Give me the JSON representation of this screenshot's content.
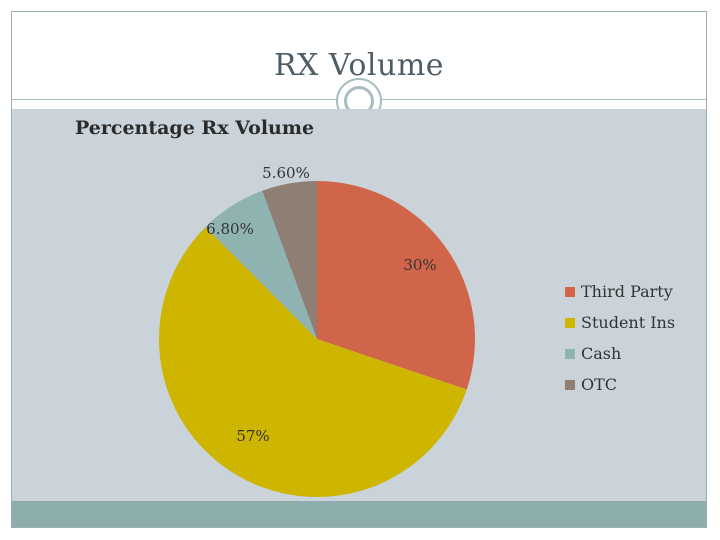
{
  "slide": {
    "title": "RX Volume"
  },
  "chart_data": {
    "type": "pie",
    "title": "Percentage Rx Volume",
    "categories": [
      "Third Party",
      "Student Ins",
      "Cash",
      "OTC"
    ],
    "values": [
      30,
      57,
      6.8,
      5.6
    ],
    "data_labels": [
      "30%",
      "57%",
      "6.80%",
      "5.60%"
    ],
    "colors": [
      "#d1654a",
      "#cdb500",
      "#8fb3b1",
      "#8e7e74"
    ],
    "legend_position": "right",
    "start_angle": "12 o'clock, clockwise"
  }
}
